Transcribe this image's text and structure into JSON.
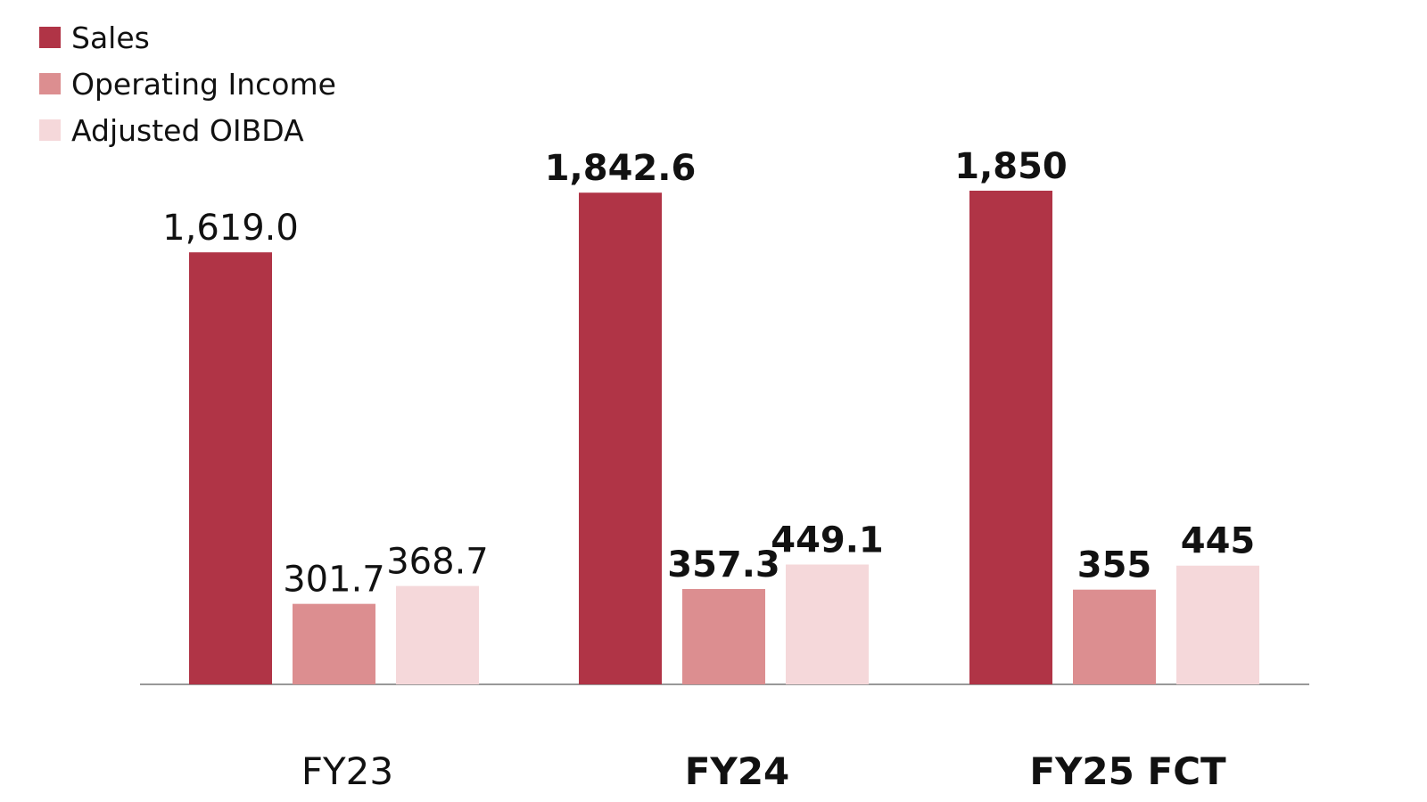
{
  "chart_data": {
    "type": "bar",
    "categories": [
      "FY23",
      "FY24",
      "FY25 FCT"
    ],
    "series": [
      {
        "name": "Sales",
        "values": [
          1619.0,
          1842.6,
          1850
        ],
        "labels": [
          "1,619.0",
          "1,842.6",
          "1,850"
        ],
        "color": "#b03446"
      },
      {
        "name": "Operating Income",
        "values": [
          301.7,
          357.3,
          355
        ],
        "labels": [
          "301.7",
          "357.3",
          "355"
        ],
        "color": "#dc8e90"
      },
      {
        "name": "Adjusted OIBDA",
        "values": [
          368.7,
          449.1,
          445
        ],
        "labels": [
          "368.7",
          "449.1",
          "445"
        ],
        "color": "#f5d8da"
      }
    ],
    "bold_categories": [
      false,
      true,
      true
    ],
    "title": "",
    "xlabel": "",
    "ylabel": "",
    "ylim": [
      0,
      2100
    ],
    "grid": false,
    "legend": "top-left",
    "axis_color": "#999999"
  }
}
